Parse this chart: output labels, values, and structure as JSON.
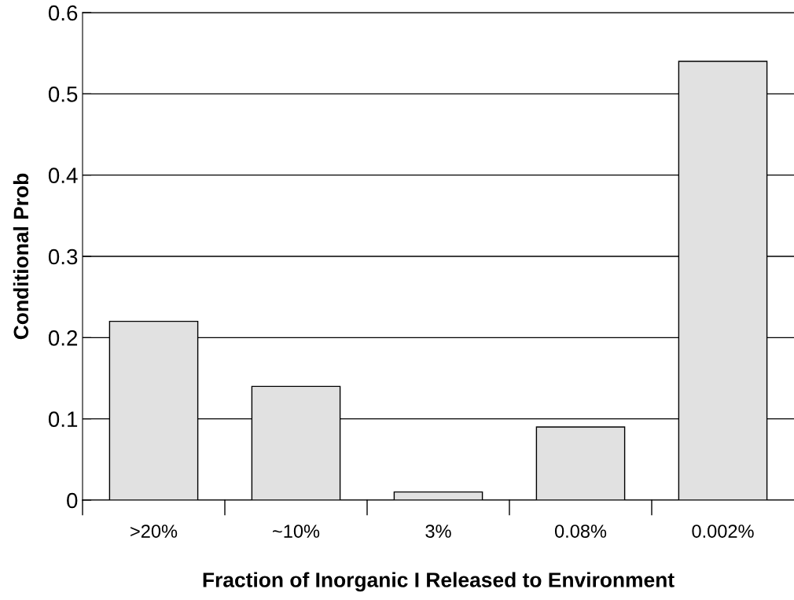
{
  "chart_data": {
    "type": "bar",
    "xlabel": "Fraction of Inorganic I Released to Environment",
    "ylabel": "Conditional Prob",
    "categories": [
      ">20%",
      "~10%",
      "3%",
      "0.08%",
      "0.002%"
    ],
    "values": [
      0.22,
      0.14,
      0.01,
      0.09,
      0.54
    ],
    "color": "#e1e1e1",
    "ylim": [
      0,
      0.6
    ],
    "yticks": [
      0,
      0.1,
      0.2,
      0.3,
      0.4,
      0.5,
      0.6
    ],
    "grid": "y",
    "legend": false
  }
}
